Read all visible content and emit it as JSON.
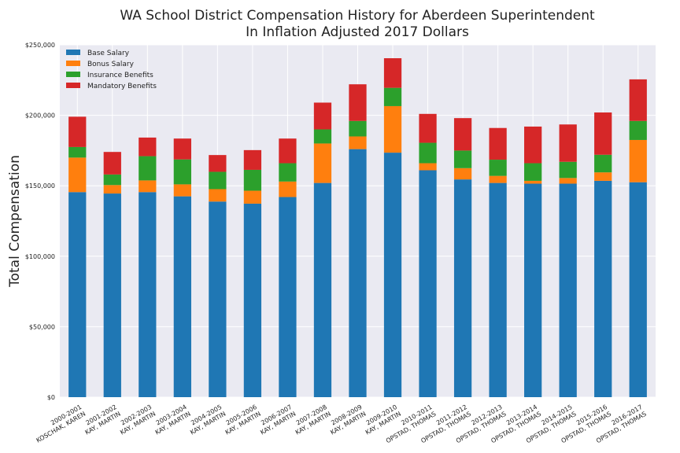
{
  "chart_data": {
    "type": "bar",
    "stacked": true,
    "title_line1": "WA School District Compensation History for Aberdeen Superintendent",
    "title_line2": "In Inflation Adjusted 2017 Dollars",
    "xlabel": "",
    "ylabel": "Total Compensation",
    "ylim": [
      0,
      250000
    ],
    "yticks": [
      0,
      50000,
      100000,
      150000,
      200000,
      250000
    ],
    "ytick_labels": [
      "$0",
      "$50,000",
      "$100,000",
      "$150,000",
      "$200,000",
      "$250,000"
    ],
    "grid": true,
    "legend_position": "top-left",
    "categories": [
      [
        "2000-2001",
        "KOSCHAK, KAREN"
      ],
      [
        "2001-2002",
        "KAY, MARTIN"
      ],
      [
        "2002-2003",
        "KAY, MARTIN"
      ],
      [
        "2003-2004",
        "KAY, MARTIN"
      ],
      [
        "2004-2005",
        "KAY, MARTIN"
      ],
      [
        "2005-2006",
        "KAY, MARTIN"
      ],
      [
        "2006-2007",
        "KAY, MARTIN"
      ],
      [
        "2007-2008",
        "KAY, MARTIN"
      ],
      [
        "2008-2009",
        "KAY, MARTIN"
      ],
      [
        "2009-2010",
        "KAY, MARTIN"
      ],
      [
        "2010-2011",
        "OPSTAD, THOMAS"
      ],
      [
        "2011-2012",
        "OPSTAD, THOMAS"
      ],
      [
        "2012-2013",
        "OPSTAD, THOMAS"
      ],
      [
        "2013-2014",
        "OPSTAD, THOMAS"
      ],
      [
        "2014-2015",
        "OPSTAD, THOMAS"
      ],
      [
        "2015-2016",
        "OPSTAD, THOMAS"
      ],
      [
        "2016-2017",
        "OPSTAD, THOMAS"
      ]
    ],
    "series": [
      {
        "name": "Base Salary",
        "color": "#1f77b4",
        "values": [
          145500,
          144500,
          145500,
          142500,
          138800,
          137300,
          142000,
          152000,
          176000,
          173500,
          161000,
          154500,
          152000,
          151500,
          151500,
          153500,
          152500
        ]
      },
      {
        "name": "Bonus Salary",
        "color": "#ff7f0e",
        "values": [
          24500,
          6000,
          8300,
          8500,
          8800,
          9200,
          11000,
          28000,
          9000,
          33000,
          5000,
          8000,
          5000,
          2000,
          4000,
          6000,
          30000
        ]
      },
      {
        "name": "Insurance Benefits",
        "color": "#2ca02c",
        "values": [
          7500,
          7500,
          17200,
          17700,
          12300,
          14800,
          13000,
          10000,
          11000,
          13000,
          14500,
          12500,
          11500,
          12500,
          11500,
          12500,
          13500
        ]
      },
      {
        "name": "Mandatory Benefits",
        "color": "#d62728",
        "values": [
          21500,
          16000,
          13200,
          14800,
          11900,
          14000,
          17500,
          19000,
          26000,
          21000,
          20500,
          23000,
          22500,
          26000,
          26500,
          30000,
          29500
        ]
      }
    ]
  }
}
